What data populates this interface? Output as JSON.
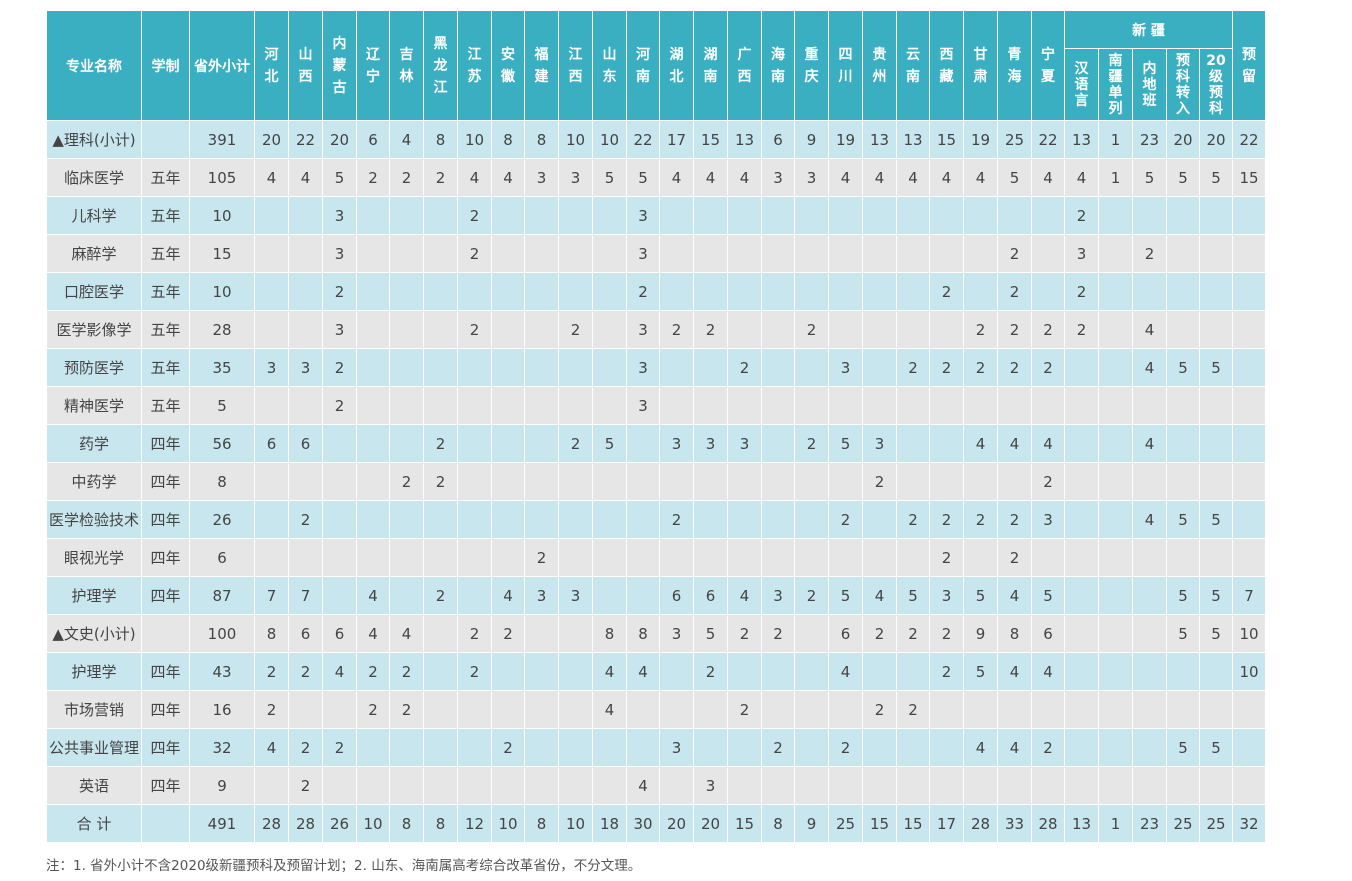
{
  "headers": {
    "major": "专业名称",
    "duration": "学制",
    "subtotal": "省外小计",
    "provinces": [
      "河北",
      "山西",
      "内蒙古",
      "辽宁",
      "吉林",
      "黑龙江",
      "江苏",
      "安徽",
      "福建",
      "江西",
      "山东",
      "河南",
      "湖北",
      "湖南",
      "广西",
      "海南",
      "重庆",
      "四川",
      "贵州",
      "云南",
      "西藏",
      "甘肃",
      "青海",
      "宁夏"
    ],
    "xinjiang_group": "新  疆",
    "xinjiang_sub": [
      "汉语言",
      "南疆单列",
      "内地班",
      "预科转入",
      "20级预科"
    ],
    "reserve": "预留"
  },
  "rows": [
    {
      "name": "▲理科(小计)",
      "duration": "",
      "total": "391",
      "cells": [
        "20",
        "22",
        "20",
        "6",
        "4",
        "8",
        "10",
        "8",
        "8",
        "10",
        "10",
        "22",
        "17",
        "15",
        "13",
        "6",
        "9",
        "19",
        "13",
        "13",
        "15",
        "19",
        "25",
        "22",
        "13",
        "1",
        "23",
        "20",
        "20",
        "22"
      ]
    },
    {
      "name": "临床医学",
      "duration": "五年",
      "total": "105",
      "cells": [
        "4",
        "4",
        "5",
        "2",
        "2",
        "2",
        "4",
        "4",
        "3",
        "3",
        "5",
        "5",
        "4",
        "4",
        "4",
        "3",
        "3",
        "4",
        "4",
        "4",
        "4",
        "4",
        "5",
        "4",
        "4",
        "1",
        "5",
        "5",
        "5",
        "15"
      ]
    },
    {
      "name": "儿科学",
      "duration": "五年",
      "total": "10",
      "cells": [
        "",
        "",
        "3",
        "",
        "",
        "",
        "2",
        "",
        "",
        "",
        "",
        "3",
        "",
        "",
        "",
        "",
        "",
        "",
        "",
        "",
        "",
        "",
        "",
        "",
        "2",
        "",
        "",
        "",
        "",
        ""
      ]
    },
    {
      "name": "麻醉学",
      "duration": "五年",
      "total": "15",
      "cells": [
        "",
        "",
        "3",
        "",
        "",
        "",
        "2",
        "",
        "",
        "",
        "",
        "3",
        "",
        "",
        "",
        "",
        "",
        "",
        "",
        "",
        "",
        "",
        "2",
        "",
        "3",
        "",
        "2",
        "",
        "",
        ""
      ]
    },
    {
      "name": "口腔医学",
      "duration": "五年",
      "total": "10",
      "cells": [
        "",
        "",
        "2",
        "",
        "",
        "",
        "",
        "",
        "",
        "",
        "",
        "2",
        "",
        "",
        "",
        "",
        "",
        "",
        "",
        "",
        "2",
        "",
        "2",
        "",
        "2",
        "",
        "",
        "",
        "",
        ""
      ]
    },
    {
      "name": "医学影像学",
      "duration": "五年",
      "total": "28",
      "cells": [
        "",
        "",
        "3",
        "",
        "",
        "",
        "2",
        "",
        "",
        "2",
        "",
        "3",
        "2",
        "2",
        "",
        "",
        "2",
        "",
        "",
        "",
        "",
        "2",
        "2",
        "2",
        "2",
        "",
        "4",
        "",
        "",
        ""
      ]
    },
    {
      "name": "预防医学",
      "duration": "五年",
      "total": "35",
      "cells": [
        "3",
        "3",
        "2",
        "",
        "",
        "",
        "",
        "",
        "",
        "",
        "",
        "3",
        "",
        "",
        "2",
        "",
        "",
        "3",
        "",
        "2",
        "2",
        "2",
        "2",
        "2",
        "",
        "",
        "4",
        "5",
        "5",
        ""
      ]
    },
    {
      "name": "精神医学",
      "duration": "五年",
      "total": "5",
      "cells": [
        "",
        "",
        "2",
        "",
        "",
        "",
        "",
        "",
        "",
        "",
        "",
        "3",
        "",
        "",
        "",
        "",
        "",
        "",
        "",
        "",
        "",
        "",
        "",
        "",
        "",
        "",
        "",
        "",
        "",
        ""
      ]
    },
    {
      "name": "药学",
      "duration": "四年",
      "total": "56",
      "cells": [
        "6",
        "6",
        "",
        "",
        "",
        "2",
        "",
        "",
        "",
        "2",
        "5",
        "",
        "3",
        "3",
        "3",
        "",
        "2",
        "5",
        "3",
        "",
        "",
        "4",
        "4",
        "4",
        "",
        "",
        "4",
        "",
        "",
        ""
      ]
    },
    {
      "name": "中药学",
      "duration": "四年",
      "total": "8",
      "cells": [
        "",
        "",
        "",
        "",
        "2",
        "2",
        "",
        "",
        "",
        "",
        "",
        "",
        "",
        "",
        "",
        "",
        "",
        "",
        "2",
        "",
        "",
        "",
        "",
        "2",
        "",
        "",
        "",
        "",
        "",
        ""
      ]
    },
    {
      "name": "医学检验技术",
      "duration": "四年",
      "total": "26",
      "cells": [
        "",
        "2",
        "",
        "",
        "",
        "",
        "",
        "",
        "",
        "",
        "",
        "",
        "2",
        "",
        "",
        "",
        "",
        "2",
        "",
        "2",
        "2",
        "2",
        "2",
        "3",
        "",
        "",
        "4",
        "5",
        "5",
        ""
      ]
    },
    {
      "name": "眼视光学",
      "duration": "四年",
      "total": "6",
      "cells": [
        "",
        "",
        "",
        "",
        "",
        "",
        "",
        "",
        "2",
        "",
        "",
        "",
        "",
        "",
        "",
        "",
        "",
        "",
        "",
        "",
        "2",
        "",
        "2",
        "",
        "",
        "",
        "",
        "",
        "",
        ""
      ]
    },
    {
      "name": "护理学",
      "duration": "四年",
      "total": "87",
      "cells": [
        "7",
        "7",
        "",
        "4",
        "",
        "2",
        "",
        "4",
        "3",
        "3",
        "",
        "",
        "6",
        "6",
        "4",
        "3",
        "2",
        "5",
        "4",
        "5",
        "3",
        "5",
        "4",
        "5",
        "",
        "",
        "",
        "5",
        "5",
        "7"
      ]
    },
    {
      "name": "▲文史(小计)",
      "duration": "",
      "total": "100",
      "cells": [
        "8",
        "6",
        "6",
        "4",
        "4",
        "",
        "2",
        "2",
        "",
        "",
        "8",
        "8",
        "3",
        "5",
        "2",
        "2",
        "",
        "6",
        "2",
        "2",
        "2",
        "9",
        "8",
        "6",
        "",
        "",
        "",
        "5",
        "5",
        "10"
      ]
    },
    {
      "name": "护理学",
      "duration": "四年",
      "total": "43",
      "cells": [
        "2",
        "2",
        "4",
        "2",
        "2",
        "",
        "2",
        "",
        "",
        "",
        "4",
        "4",
        "",
        "2",
        "",
        "",
        "",
        "4",
        "",
        "",
        "2",
        "5",
        "4",
        "4",
        "",
        "",
        "",
        "",
        "",
        "10"
      ]
    },
    {
      "name": "市场营销",
      "duration": "四年",
      "total": "16",
      "cells": [
        "2",
        "",
        "",
        "2",
        "2",
        "",
        "",
        "",
        "",
        "",
        "4",
        "",
        "",
        "",
        "2",
        "",
        "",
        "",
        "2",
        "2",
        "",
        "",
        "",
        "",
        "",
        "",
        "",
        "",
        "",
        ""
      ]
    },
    {
      "name": "公共事业管理",
      "duration": "四年",
      "total": "32",
      "cells": [
        "4",
        "2",
        "2",
        "",
        "",
        "",
        "",
        "2",
        "",
        "",
        "",
        "",
        "3",
        "",
        "",
        "2",
        "",
        "2",
        "",
        "",
        "",
        "4",
        "4",
        "2",
        "",
        "",
        "",
        "5",
        "5",
        ""
      ]
    },
    {
      "name": "英语",
      "duration": "四年",
      "total": "9",
      "cells": [
        "",
        "2",
        "",
        "",
        "",
        "",
        "",
        "",
        "",
        "",
        "",
        "4",
        "",
        "3",
        "",
        "",
        "",
        "",
        "",
        "",
        "",
        "",
        "",
        "",
        "",
        "",
        "",
        "",
        "",
        ""
      ]
    },
    {
      "name": "合  计",
      "duration": "",
      "total": "491",
      "cells": [
        "28",
        "28",
        "26",
        "10",
        "8",
        "8",
        "12",
        "10",
        "8",
        "10",
        "18",
        "30",
        "20",
        "20",
        "15",
        "8",
        "9",
        "25",
        "15",
        "15",
        "17",
        "28",
        "33",
        "28",
        "13",
        "1",
        "23",
        "25",
        "25",
        "32"
      ]
    }
  ],
  "footnote": "注：1. 省外小计不含2020级新疆预科及预留计划；2. 山东、海南属高考综合改革省份，不分文理。"
}
